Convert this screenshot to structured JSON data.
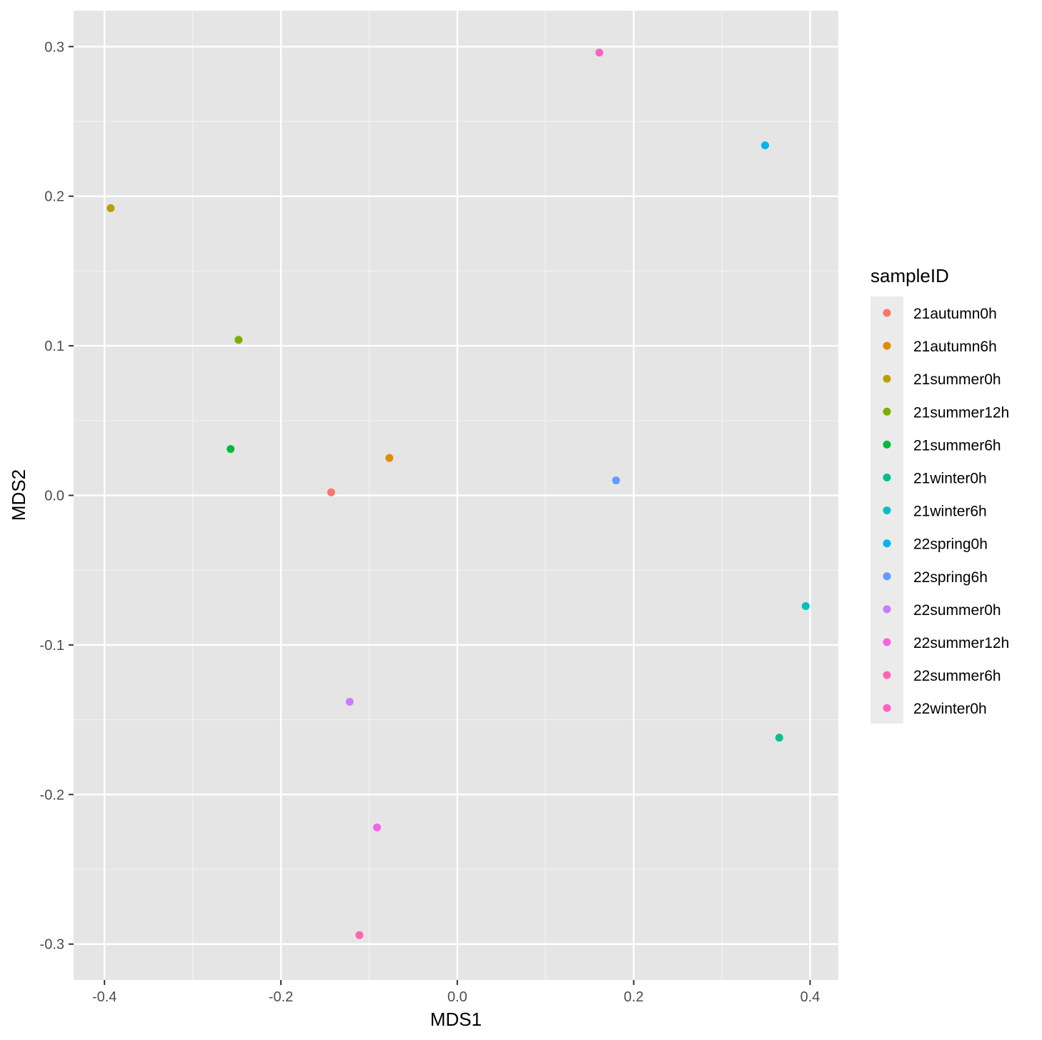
{
  "chart_data": {
    "type": "scatter",
    "title": "",
    "xlabel": "MDS1",
    "ylabel": "MDS2",
    "xlim": [
      -0.435,
      0.432
    ],
    "ylim": [
      -0.324,
      0.324
    ],
    "xticks": [
      -0.4,
      -0.2,
      0.0,
      0.2,
      0.4
    ],
    "xtick_labels": [
      "-0.4",
      "-0.2",
      "0.0",
      "0.2",
      "0.4"
    ],
    "yticks": [
      -0.3,
      -0.2,
      -0.1,
      0.0,
      0.1,
      0.2,
      0.3
    ],
    "ytick_labels": [
      "-0.3",
      "-0.2",
      "-0.1",
      "0.0",
      "0.1",
      "0.2",
      "0.3"
    ],
    "grid": true,
    "legend": {
      "title": "sampleID",
      "position": "right"
    },
    "series": [
      {
        "name": "21autumn0h",
        "color": "#F8766D",
        "x": -0.143,
        "y": 0.002
      },
      {
        "name": "21autumn6h",
        "color": "#DE8C00",
        "x": -0.077,
        "y": 0.025
      },
      {
        "name": "21summer0h",
        "color": "#B79F00",
        "x": -0.393,
        "y": 0.192
      },
      {
        "name": "21summer12h",
        "color": "#7CAE00",
        "x": -0.248,
        "y": 0.104
      },
      {
        "name": "21summer6h",
        "color": "#00BA38",
        "x": -0.257,
        "y": 0.031
      },
      {
        "name": "21winter0h",
        "color": "#00C08B",
        "x": 0.365,
        "y": -0.162
      },
      {
        "name": "21winter6h",
        "color": "#00BFC4",
        "x": 0.395,
        "y": -0.074
      },
      {
        "name": "22spring0h",
        "color": "#00B4F0",
        "x": 0.349,
        "y": 0.234
      },
      {
        "name": "22spring6h",
        "color": "#619CFF",
        "x": 0.18,
        "y": 0.01
      },
      {
        "name": "22summer0h",
        "color": "#C77CFF",
        "x": -0.122,
        "y": -0.138
      },
      {
        "name": "22summer12h",
        "color": "#F564E3",
        "x": -0.091,
        "y": -0.222
      },
      {
        "name": "22summer6h",
        "color": "#FF64B0",
        "x": -0.111,
        "y": -0.294
      },
      {
        "name": "22winter0h",
        "color": "#FF61C3",
        "x": 0.161,
        "y": 0.296
      }
    ],
    "colors": {
      "panel_background": "#E5E5E5",
      "grid_major": "#FFFFFF",
      "grid_minor": "#F2F2F2",
      "legend_key_background": "#EBEBEB"
    }
  }
}
